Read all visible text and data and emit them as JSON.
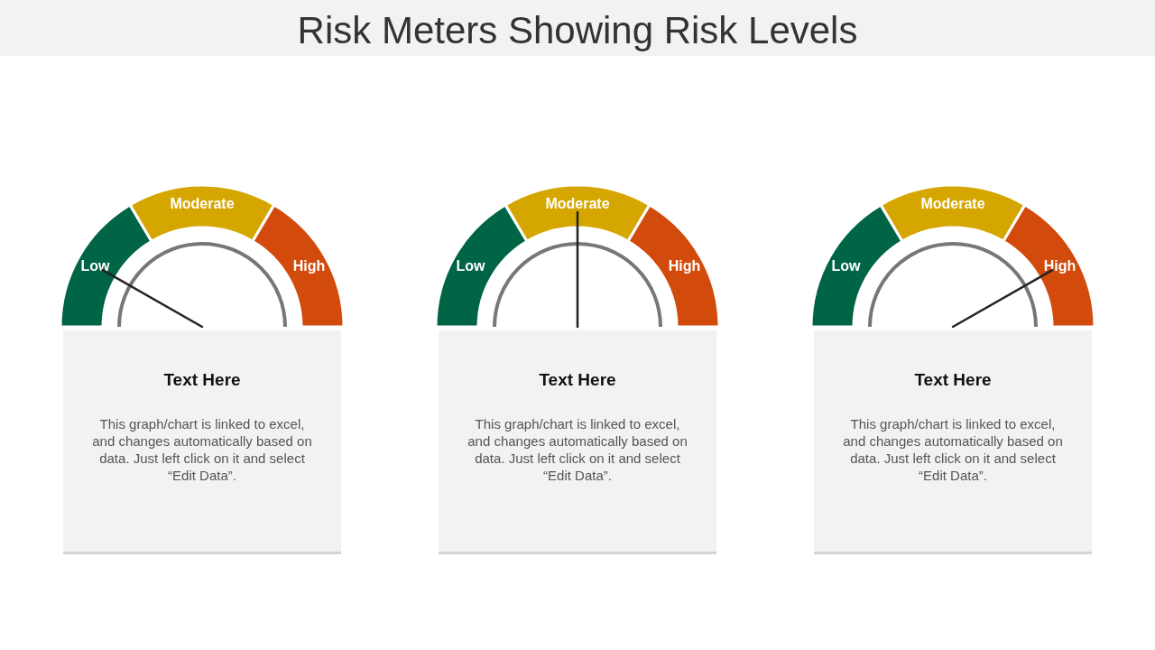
{
  "chart_data": [
    {
      "type": "donut",
      "categories": [
        "Low",
        "Moderate",
        "High"
      ],
      "values": [
        33,
        34,
        33
      ],
      "colors": [
        "#006446",
        "#d6a600",
        "#d24a0c"
      ],
      "needle": "Low",
      "annotations": [
        "Text Here",
        "This graph/chart is linked to excel, and changes automatically based on data. Just left click on it and select “Edit Data”."
      ]
    },
    {
      "type": "donut",
      "title": "Risk Meters Showing Risk Levels",
      "categories": [
        "Low",
        "Moderate",
        "High"
      ],
      "values": [
        33,
        34,
        33
      ],
      "colors": [
        "#006446",
        "#d6a600",
        "#d24a0c"
      ],
      "needle": "Moderate",
      "annotations": [
        "Text Here",
        "This graph/chart is linked to excel, and changes automatically based on data. Just left click on it and select “Edit Data”."
      ]
    },
    {
      "type": "donut",
      "categories": [
        "Low",
        "Moderate",
        "High"
      ],
      "values": [
        33,
        34,
        33
      ],
      "colors": [
        "#006446",
        "#d6a600",
        "#d24a0c"
      ],
      "needle": "High",
      "annotations": [
        "Text Here",
        "This graph/chart is linked to excel, and changes automatically based on data. Just left click on it and select “Edit Data”."
      ]
    }
  ]
}
